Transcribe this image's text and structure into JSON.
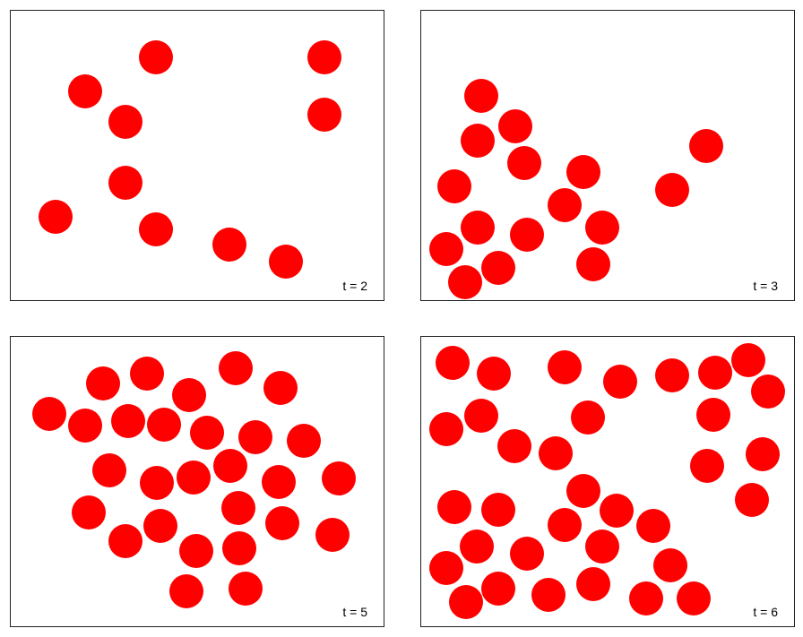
{
  "panels": [
    {
      "label": "t = 2"
    },
    {
      "label": "t = 3"
    },
    {
      "label": "t = 5"
    },
    {
      "label": "t = 6"
    }
  ]
}
